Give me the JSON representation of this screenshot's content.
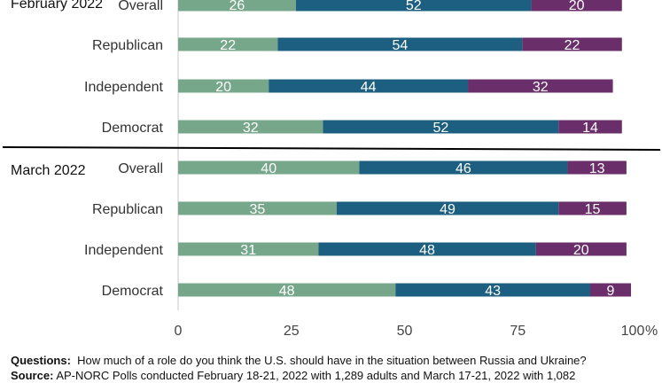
{
  "colors": {
    "no_role": "#76a78a",
    "minor_role": "#1d5f80",
    "major_role": "#6a2e6a",
    "axis": "#c8c8c8",
    "divider": "#000000"
  },
  "chart_data": {
    "type": "bar",
    "orientation": "horizontal",
    "stacked": true,
    "xlim": [
      0,
      100
    ],
    "x_ticks": [
      "0",
      "25",
      "50",
      "75",
      "100"
    ],
    "x_unit": "%",
    "groups": [
      {
        "label": "February 2022",
        "rows": [
          {
            "category": "Overall",
            "values": [
              26,
              52,
              20
            ]
          },
          {
            "category": "Republican",
            "values": [
              22,
              54,
              22
            ]
          },
          {
            "category": "Independent",
            "values": [
              20,
              44,
              32
            ]
          },
          {
            "category": "Democrat",
            "values": [
              32,
              52,
              14
            ]
          }
        ]
      },
      {
        "label": "March 2022",
        "rows": [
          {
            "category": "Overall",
            "values": [
              40,
              46,
              13
            ]
          },
          {
            "category": "Republican",
            "values": [
              35,
              49,
              15
            ]
          },
          {
            "category": "Independent",
            "values": [
              31,
              48,
              20
            ]
          },
          {
            "category": "Democrat",
            "values": [
              48,
              43,
              9
            ]
          }
        ]
      }
    ]
  },
  "notes": {
    "questions_label": "Questions:",
    "questions_text": "How much of a role do you think the U.S. should have in the situation between Russia and Ukraine?",
    "source_label": "Source:",
    "source_text": "AP-NORC Polls conducted February 18-21, 2022 with 1,289 adults and March 17-21, 2022 with 1,082"
  }
}
